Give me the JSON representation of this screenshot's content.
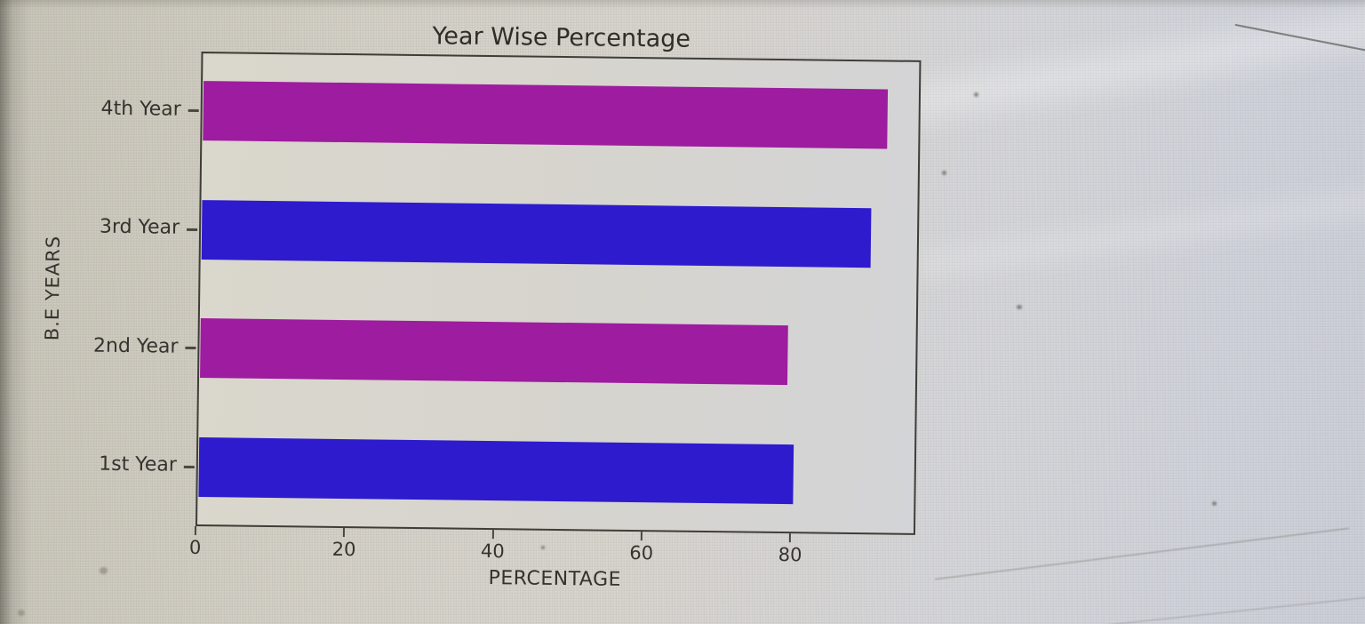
{
  "chart_data": {
    "type": "bar",
    "orientation": "horizontal",
    "title": "Year Wise Percentage",
    "categories": [
      "1st Year",
      "2nd Year",
      "3rd Year",
      "4th Year"
    ],
    "values": [
      80,
      79,
      90,
      92
    ],
    "series": [
      {
        "name": "Percentage",
        "values": [
          80,
          79,
          90,
          92
        ]
      }
    ],
    "xlabel": "PERCENTAGE",
    "ylabel": "B.E YEARS",
    "xticks": [
      0,
      20,
      40,
      60,
      80
    ],
    "xtick_labels": [
      "0",
      "20",
      "40",
      "60",
      "80"
    ],
    "xlim": [
      0,
      96.8
    ],
    "grid": false,
    "legend": null,
    "bar_colors": [
      "#2e1bcd",
      "#9d1c9f",
      "#2e1bcd",
      "#9d1c9f"
    ],
    "accent_blue": "#2e1bcd",
    "accent_magenta": "#9d1c9f",
    "text_color": "#35332e",
    "spine_color": "#3f3d37"
  }
}
